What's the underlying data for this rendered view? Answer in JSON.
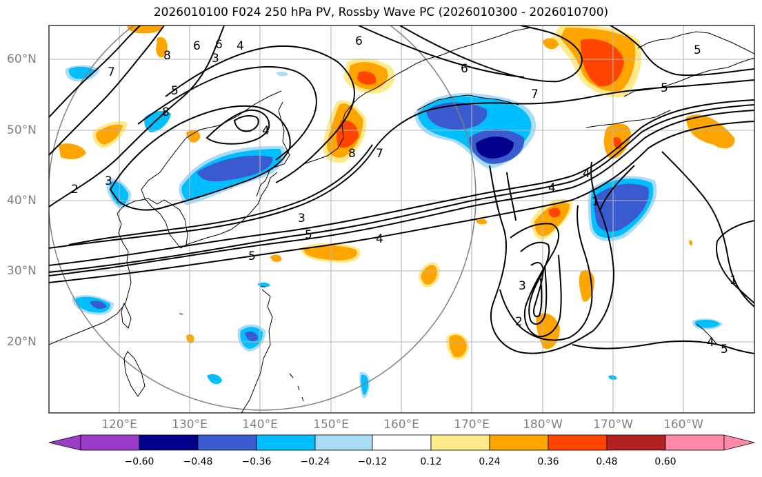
{
  "title": "2026010100 F024 250 hPa PV, Rossby Wave PC (2026010300 - 2026010700)",
  "lat_labels": [
    "60°N",
    "50°N",
    "40°N",
    "30°N",
    "20°N"
  ],
  "lon_labels": [
    "120°E",
    "130°E",
    "140°E",
    "150°E",
    "160°E",
    "170°E",
    "180°W",
    "170°W",
    "160°W"
  ],
  "colorbar": {
    "ticks": [
      "−0.60",
      "−0.48",
      "−0.36",
      "−0.24",
      "−0.12",
      "0.12",
      "0.24",
      "0.36",
      "0.48",
      "0.60"
    ],
    "colors": [
      "#9a3cc8",
      "#00008b",
      "#3a5bd0",
      "#00bfff",
      "#aadcf8",
      "#ffffff",
      "#ffe98a",
      "#ffa500",
      "#ff4500",
      "#b22222",
      "#ff89a8"
    ]
  },
  "contour_labels": [
    "6",
    "8",
    "6",
    "4",
    "3",
    "7",
    "5",
    "8",
    "4",
    "2",
    "3",
    "7",
    "8",
    "6",
    "7",
    "5",
    "6",
    "5",
    "4",
    "4",
    "1",
    "3",
    "5",
    "4",
    "5",
    "3",
    "2",
    "1",
    "4",
    "5",
    "1",
    "1"
  ]
}
